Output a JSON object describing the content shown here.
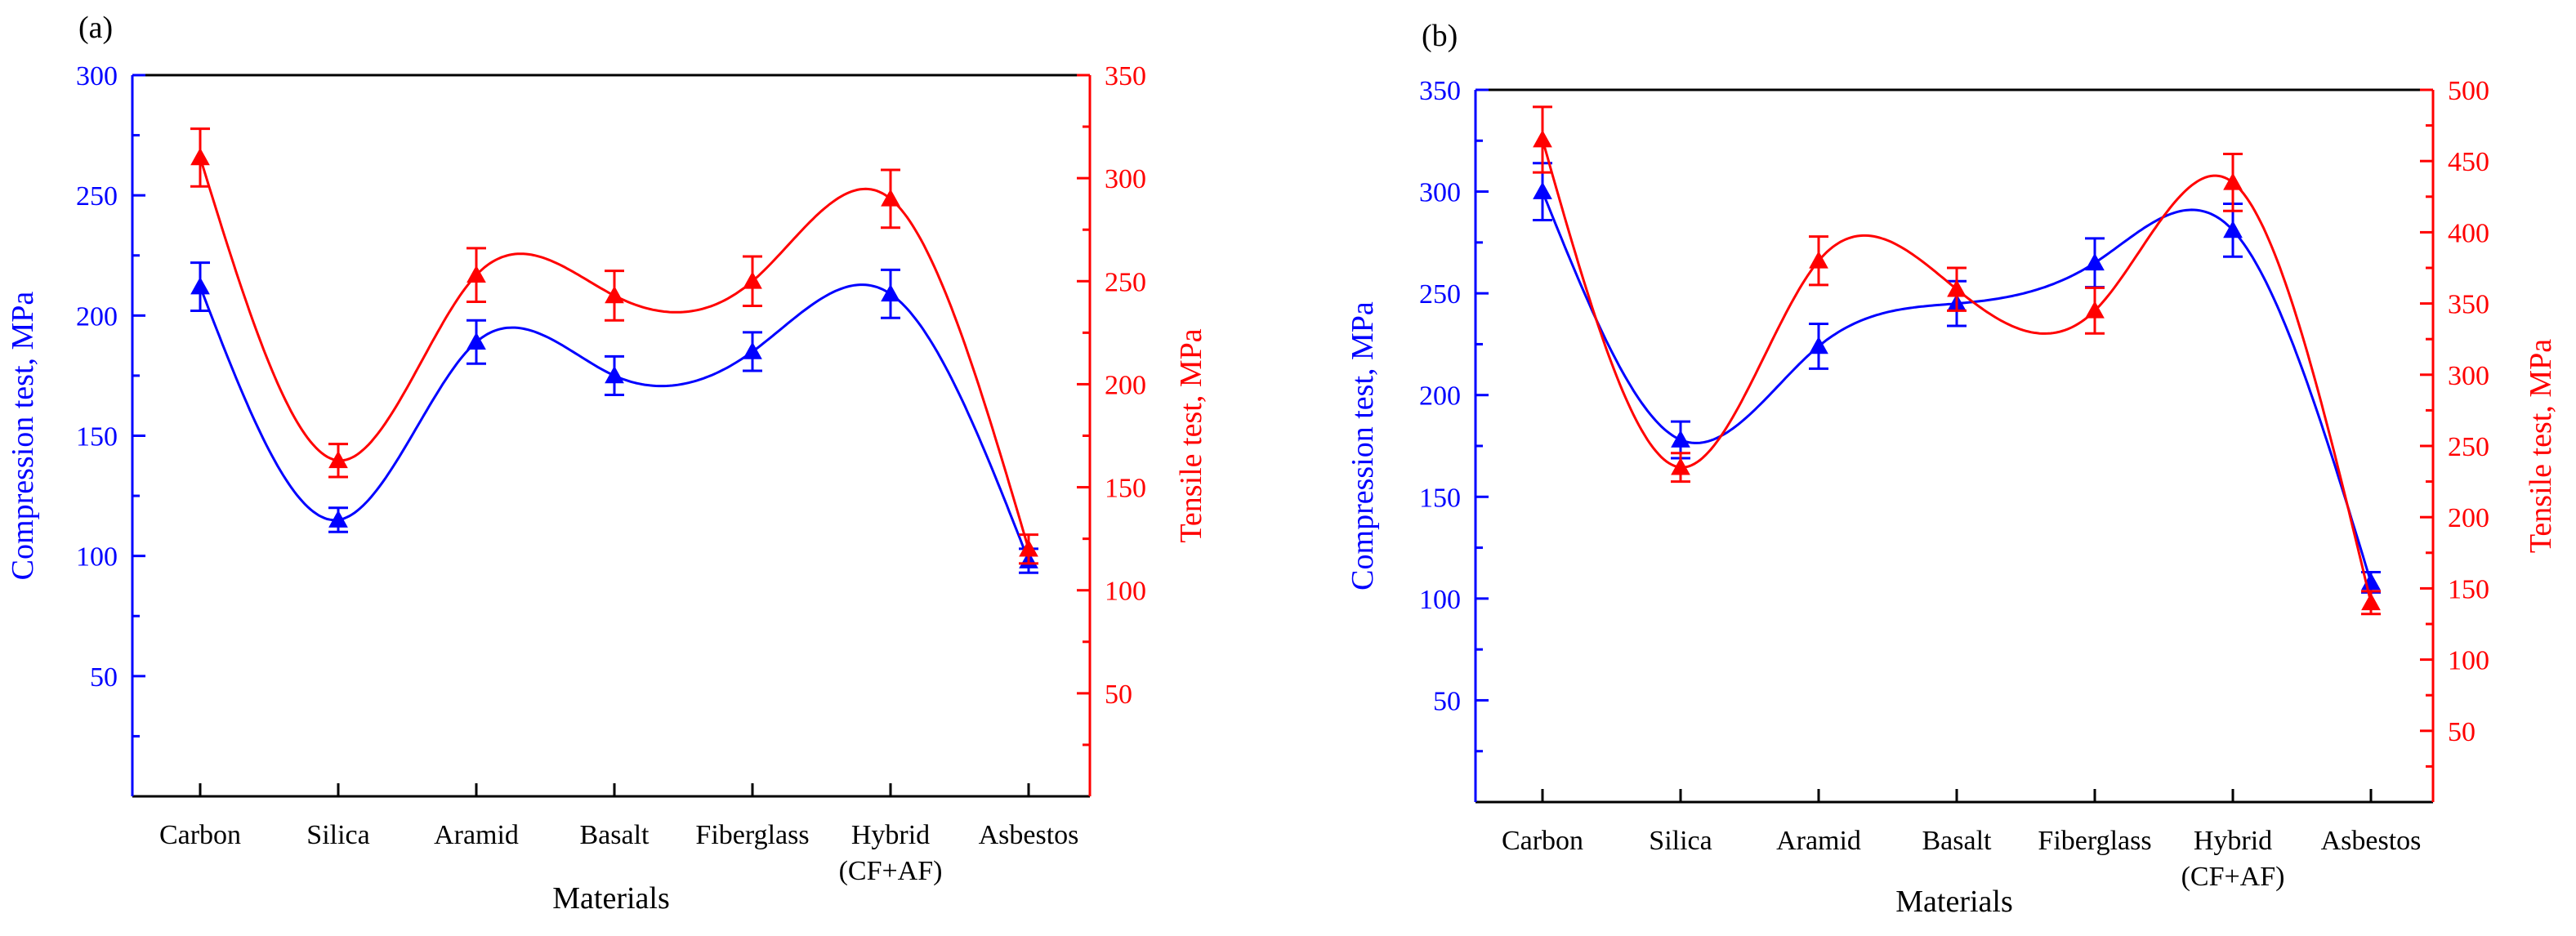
{
  "colors": {
    "compression": "#0000ff",
    "tensile": "#ff0000",
    "axis": "#000000"
  },
  "chart_data": [
    {
      "type": "line",
      "panel_label": "(a)",
      "categories": [
        "Carbon",
        "Silica",
        "Aramid",
        "Basalt",
        "Fiberglass",
        "Hybrid\n(CF+AF)",
        "Asbestos"
      ],
      "xlabel": "Materials",
      "ylabel_left": "Compression test, MPa",
      "ylabel_right": "Tensile test, MPa",
      "ylim_left": [
        0,
        300
      ],
      "ylim_right": [
        0,
        350
      ],
      "yticks_left": [
        50,
        100,
        150,
        200,
        250,
        300
      ],
      "yticks_right": [
        50,
        100,
        150,
        200,
        250,
        300,
        350
      ],
      "series": [
        {
          "name": "Compression test",
          "axis": "left",
          "color": "#0000ff",
          "values": [
            212,
            115,
            189,
            175,
            185,
            209,
            98
          ],
          "errors": [
            10,
            5,
            9,
            8,
            8,
            10,
            5
          ]
        },
        {
          "name": "Tensile test",
          "axis": "right",
          "color": "#ff0000",
          "values": [
            310,
            163,
            253,
            243,
            250,
            290,
            120
          ],
          "errors": [
            14,
            8,
            13,
            12,
            12,
            14,
            7
          ]
        }
      ]
    },
    {
      "type": "line",
      "panel_label": "(b)",
      "categories": [
        "Carbon",
        "Silica",
        "Aramid",
        "Basalt",
        "Fiberglass",
        "Hybrid\n(CF+AF)",
        "Asbestos"
      ],
      "xlabel": "Materials",
      "ylabel_left": "Compression test, MPa",
      "ylabel_right": "Tensile test, MPa",
      "ylim_left": [
        0,
        350
      ],
      "ylim_right": [
        0,
        500
      ],
      "yticks_left": [
        50,
        100,
        150,
        200,
        250,
        300,
        350
      ],
      "yticks_right": [
        50,
        100,
        150,
        200,
        250,
        300,
        350,
        400,
        450,
        500
      ],
      "series": [
        {
          "name": "Compression test",
          "axis": "left",
          "color": "#0000ff",
          "values": [
            300,
            178,
            224,
            245,
            265,
            281,
            108
          ],
          "errors": [
            14,
            9,
            11,
            11,
            12,
            13,
            5
          ]
        },
        {
          "name": "Tensile test",
          "axis": "right",
          "color": "#ff0000",
          "values": [
            465,
            235,
            380,
            360,
            345,
            435,
            140
          ],
          "errors": [
            23,
            10,
            17,
            15,
            16,
            20,
            8
          ]
        }
      ]
    }
  ]
}
